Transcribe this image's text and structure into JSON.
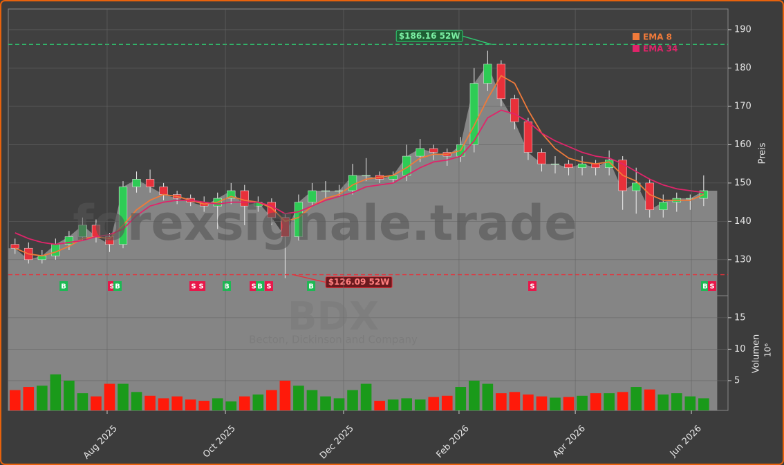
{
  "chart_data": [
    {
      "type": "candlestick",
      "watermark": "forexsignale.trade",
      "symbol": "BDX",
      "company": "Becton, Dickinson and Company",
      "y_label": "Preis",
      "x": [
        0,
        1,
        2,
        3,
        4,
        5,
        6,
        7,
        8,
        9,
        10,
        11,
        12,
        13,
        14,
        15,
        16,
        17,
        18,
        19,
        20,
        21,
        22,
        23,
        24,
        25,
        26,
        27,
        28,
        29,
        30,
        31,
        32,
        33,
        34,
        35,
        36,
        37,
        38,
        39,
        40,
        41,
        42,
        43,
        44,
        45,
        46,
        47,
        48,
        49,
        50,
        51
      ],
      "open": [
        134,
        133,
        130,
        131,
        134,
        136,
        139,
        136,
        134,
        149,
        151,
        149,
        147,
        146,
        145,
        144,
        146,
        148,
        144,
        145,
        141,
        136,
        145,
        148,
        148,
        148,
        152,
        152,
        151,
        152,
        157,
        159,
        158,
        157,
        160,
        176,
        181,
        172,
        166,
        158,
        155,
        155,
        154,
        155,
        154,
        156,
        148,
        150,
        143,
        145,
        146,
        146
      ],
      "high": [
        135.5,
        134.5,
        132.5,
        135.5,
        137.5,
        141,
        140.5,
        137,
        150.5,
        153,
        153.5,
        150,
        148,
        147,
        146.5,
        147.5,
        150,
        149.5,
        146.5,
        146,
        142,
        147,
        150,
        150.5,
        149.5,
        155,
        156.5,
        153,
        153,
        160,
        161.5,
        160,
        159,
        162,
        180,
        184.5,
        182,
        173,
        167,
        159,
        157,
        156,
        157,
        156,
        158.5,
        157,
        154,
        151,
        147,
        147.5,
        147,
        152
      ],
      "low": [
        131.5,
        129,
        129,
        130,
        132.5,
        135,
        134.5,
        132,
        133,
        147.5,
        147.5,
        145.5,
        144.5,
        144,
        142.5,
        138,
        144.5,
        139,
        142.5,
        139,
        125.2,
        135,
        144,
        146,
        146.5,
        147,
        150.5,
        150,
        150,
        150.5,
        155.5,
        156,
        154.5,
        155.5,
        158,
        174,
        170,
        164,
        156,
        153,
        152.5,
        152,
        152,
        152,
        152,
        143,
        142,
        141,
        141,
        142.5,
        143,
        144
      ],
      "close": [
        133,
        130,
        131,
        134,
        136,
        139,
        136,
        134,
        149,
        151,
        149,
        147,
        146,
        145,
        144,
        146,
        148,
        144,
        145,
        141,
        136,
        145,
        148,
        148,
        148,
        152,
        152,
        151,
        152,
        157,
        159,
        158,
        157,
        160,
        176,
        181,
        172,
        166,
        158,
        155,
        155,
        154,
        155,
        154,
        156,
        148,
        150,
        143,
        145,
        146,
        146,
        148
      ],
      "up_color": "#2ecc55",
      "down_color": "#e8303a",
      "area_color": "#858585",
      "series": [
        {
          "name": "EMA 8",
          "color": "#f07a3a",
          "values": [
            133,
            131.5,
            131,
            132,
            133.5,
            135.5,
            136,
            135.5,
            139,
            143,
            145.5,
            147,
            146.5,
            145.5,
            144.5,
            145,
            146.5,
            145.5,
            145,
            143.5,
            140,
            141,
            144,
            146,
            147,
            149.5,
            151,
            151.5,
            152,
            154,
            156.5,
            157.5,
            157.5,
            158.5,
            165,
            172,
            178,
            176,
            169,
            163,
            159,
            156.5,
            155.5,
            155,
            155.5,
            152,
            150.5,
            147,
            145.5,
            145.5,
            145.5,
            147
          ]
        },
        {
          "name": "EMA 34",
          "color": "#e0246a",
          "values": [
            137,
            135.5,
            134.5,
            134,
            134.5,
            135,
            136,
            136.5,
            138,
            141.5,
            144,
            145,
            145.5,
            145.5,
            145,
            144.5,
            145,
            145,
            145,
            144,
            142,
            142.5,
            144,
            145.5,
            146.5,
            147.5,
            149,
            149.5,
            150,
            152,
            154,
            155.5,
            156,
            157,
            161,
            167,
            169,
            168,
            166,
            163,
            161,
            159.5,
            158,
            157,
            156.5,
            155,
            153,
            151,
            149.5,
            148.5,
            148,
            147.5
          ]
        }
      ],
      "hlines": [
        {
          "value": 186.16,
          "label": "$186.16 52W",
          "color": "#2ecc71",
          "point_x": 35.3
        },
        {
          "value": 126.09,
          "label": "$126.09 52W",
          "color": "#e8303a",
          "point_x": 20.6
        }
      ],
      "signals": [
        {
          "label": "B",
          "x": 3.6
        },
        {
          "label": "S",
          "x": 7.18
        },
        {
          "label": "B",
          "x": 7.59
        },
        {
          "label": "S",
          "x": 13.22
        },
        {
          "label": "S",
          "x": 13.79
        },
        {
          "label": "B",
          "x": 15.68
        },
        {
          "label": "S",
          "x": 17.68
        },
        {
          "label": "B",
          "x": 18.14
        },
        {
          "label": "S",
          "x": 18.8
        },
        {
          "label": "B",
          "x": 21.93
        },
        {
          "label": "S",
          "x": 38.31
        },
        {
          "label": "B",
          "x": 51.11
        },
        {
          "label": "S",
          "x": 51.62
        }
      ],
      "xlim": [
        -0.5,
        52.8
      ],
      "ylim": [
        120.6,
        195.4
      ],
      "yticks": [
        130,
        140,
        150,
        160,
        170,
        180,
        190
      ],
      "grid": true,
      "legend": "upper right"
    },
    {
      "type": "bar",
      "y_label": "Volumen",
      "y_exponent": "10⁶",
      "x": [
        0,
        1,
        2,
        3,
        4,
        5,
        6,
        7,
        8,
        9,
        10,
        11,
        12,
        13,
        14,
        15,
        16,
        17,
        18,
        19,
        20,
        21,
        22,
        23,
        24,
        25,
        26,
        27,
        28,
        29,
        30,
        31,
        32,
        33,
        34,
        35,
        36,
        37,
        38,
        39,
        40,
        41,
        42,
        43,
        44,
        45,
        46,
        47,
        48,
        49,
        50,
        51
      ],
      "values": [
        3.5,
        4,
        4.2,
        6,
        5,
        3,
        2.5,
        4.5,
        4.5,
        3.2,
        2.6,
        2.2,
        2.5,
        2,
        1.8,
        2.2,
        1.7,
        2.5,
        2.8,
        3.5,
        5,
        4.2,
        3.5,
        2.5,
        2.2,
        3.5,
        4.5,
        1.8,
        2,
        2.2,
        2,
        2.4,
        2.6,
        4,
        5,
        4.5,
        3,
        3.2,
        2.8,
        2.5,
        2.3,
        2.4,
        2.6,
        3,
        3,
        3.2,
        4,
        3.6,
        2.8,
        3,
        2.5,
        2.2
      ],
      "xlim": [
        -0.5,
        52.8
      ],
      "ylim": [
        0.27,
        18.5
      ],
      "yticks": [
        5,
        10,
        15
      ],
      "xticks": [
        {
          "value": 6.82,
          "label": "Aug 2025"
        },
        {
          "value": 15.58,
          "label": "Oct 2025"
        },
        {
          "value": 24.33,
          "label": "Dec 2025"
        },
        {
          "value": 32.88,
          "label": "Feb 2026"
        },
        {
          "value": 41.49,
          "label": "Apr 2026"
        },
        {
          "value": 50.09,
          "label": "Jun 2026"
        }
      ],
      "grid": true
    }
  ]
}
